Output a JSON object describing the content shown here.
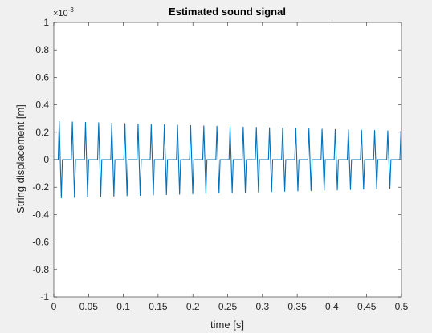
{
  "chart_data": {
    "type": "line",
    "title": "Estimated sound signal",
    "xlabel": "time [s]",
    "ylabel": "String displacement [m]",
    "exponent_label": {
      "base": "×10",
      "exp": "-3"
    },
    "xlim": [
      0,
      0.5
    ],
    "ylim": [
      -0.001,
      0.001
    ],
    "x_ticks": [
      0,
      0.05,
      0.1,
      0.15,
      0.2,
      0.25,
      0.3,
      0.35,
      0.4,
      0.45,
      0.5
    ],
    "x_tick_labels": [
      "0",
      "0.05",
      "0.1",
      "0.15",
      "0.2",
      "0.25",
      "0.3",
      "0.35",
      "0.4",
      "0.45",
      "0.5"
    ],
    "y_ticks": [
      -1,
      -0.8,
      -0.6,
      -0.4,
      -0.2,
      0,
      0.2,
      0.4,
      0.6,
      0.8,
      1
    ],
    "y_tick_labels": [
      "-1",
      "-0.8",
      "-0.6",
      "-0.4",
      "-0.2",
      "0",
      "0.2",
      "0.4",
      "0.6",
      "0.8",
      "1"
    ],
    "y_tick_scale": 0.001,
    "grid": false,
    "series": [
      {
        "color": "#0072BD",
        "period_s": 0.0189,
        "first_pulse_s": 0.0093,
        "initial_amplitude_m": 0.00028,
        "decay_per_s": 0.59
      }
    ]
  },
  "colors": {
    "background": "#f0f0f0",
    "axes_background": "#ffffff",
    "axes_color": "#262626",
    "line": "#0072BD"
  }
}
